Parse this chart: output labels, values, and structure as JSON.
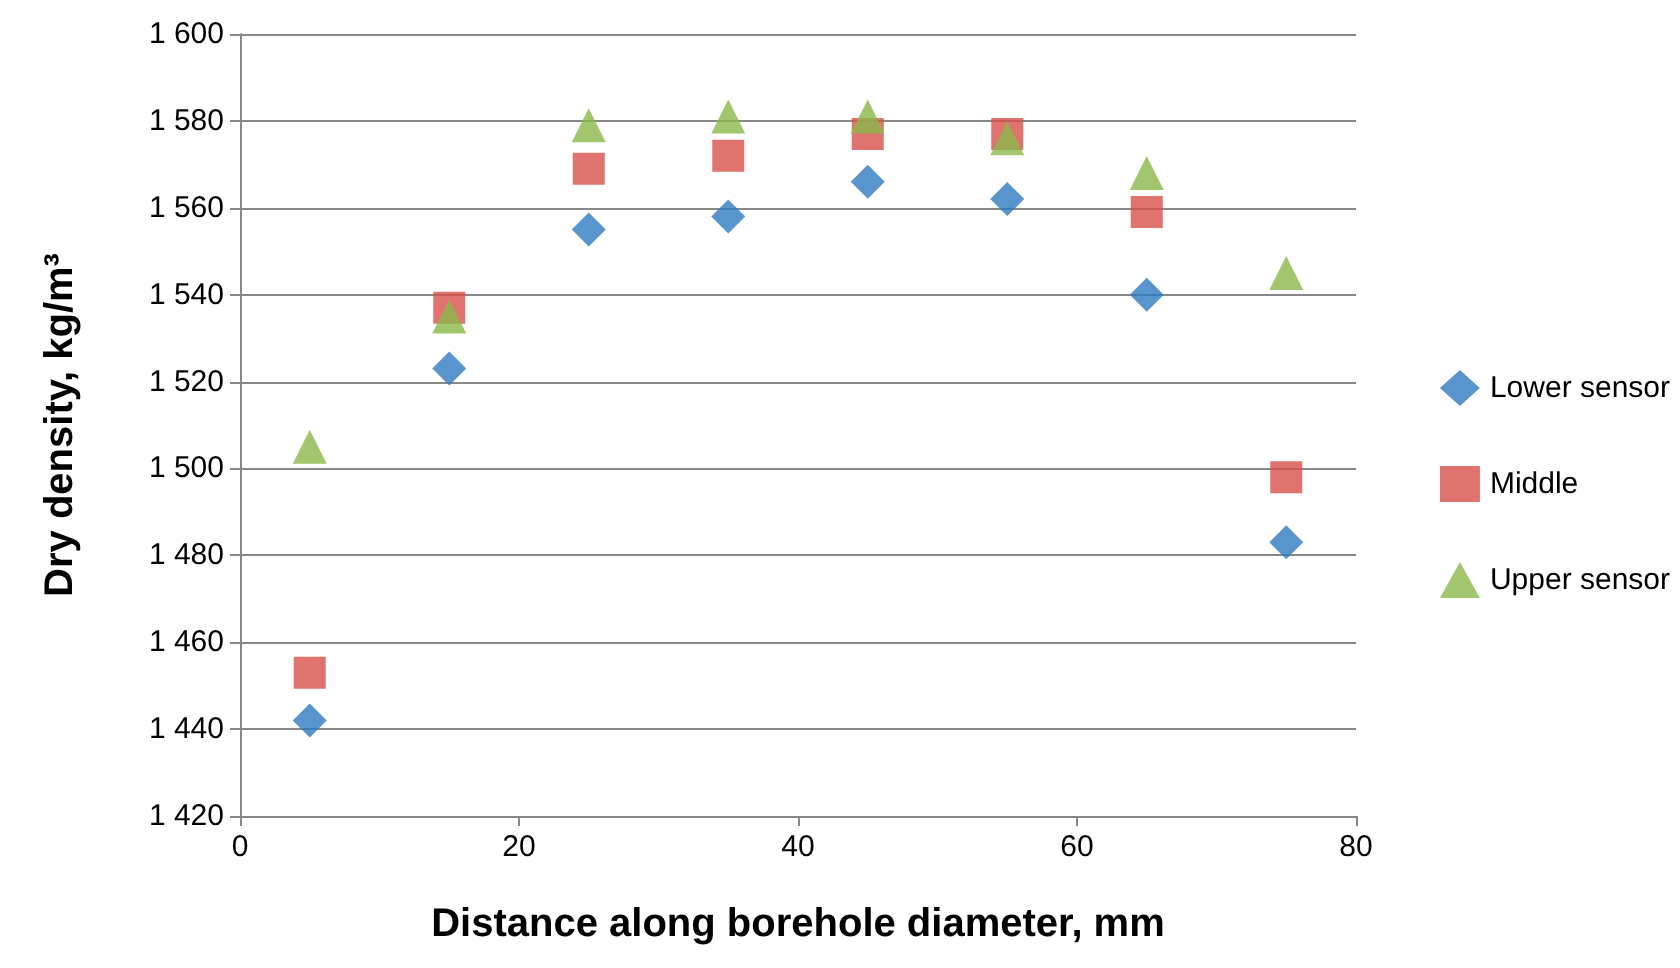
{
  "chart_data": {
    "type": "scatter",
    "xlabel": "Distance along borehole diameter, mm",
    "ylabel": "Dry density, kg/m³",
    "x": [
      5,
      15,
      25,
      35,
      45,
      55,
      65,
      75
    ],
    "series": [
      {
        "name": "Lower sensor",
        "color": "#2e7bbf",
        "marker": "diamond",
        "values": [
          1442,
          1523,
          1555,
          1558,
          1566,
          1562,
          1540,
          1483
        ]
      },
      {
        "name": "Middle",
        "color": "#d9504b",
        "marker": "square",
        "values": [
          1453,
          1537,
          1569,
          1572,
          1577,
          1577,
          1559,
          1498
        ]
      },
      {
        "name": "Upper sensor",
        "color": "#8bb84a",
        "marker": "triangle",
        "values": [
          1505,
          1535,
          1579,
          1581,
          1581,
          1576,
          1568,
          1545
        ]
      }
    ],
    "xlim": [
      0,
      80
    ],
    "xticks": [
      0,
      20,
      40,
      60,
      80
    ],
    "ylim": [
      1420,
      1600
    ],
    "yticks": [
      {
        "value": 1420,
        "label": "1 420"
      },
      {
        "value": 1440,
        "label": "1 440"
      },
      {
        "value": 1460,
        "label": "1 460"
      },
      {
        "value": 1480,
        "label": "1 480"
      },
      {
        "value": 1500,
        "label": "1 500"
      },
      {
        "value": 1520,
        "label": "1 520"
      },
      {
        "value": 1540,
        "label": "1 540"
      },
      {
        "value": 1560,
        "label": "1 560"
      },
      {
        "value": 1580,
        "label": "1 580"
      },
      {
        "value": 1600,
        "label": "1 600"
      }
    ],
    "grid": "y",
    "legend": "right"
  }
}
